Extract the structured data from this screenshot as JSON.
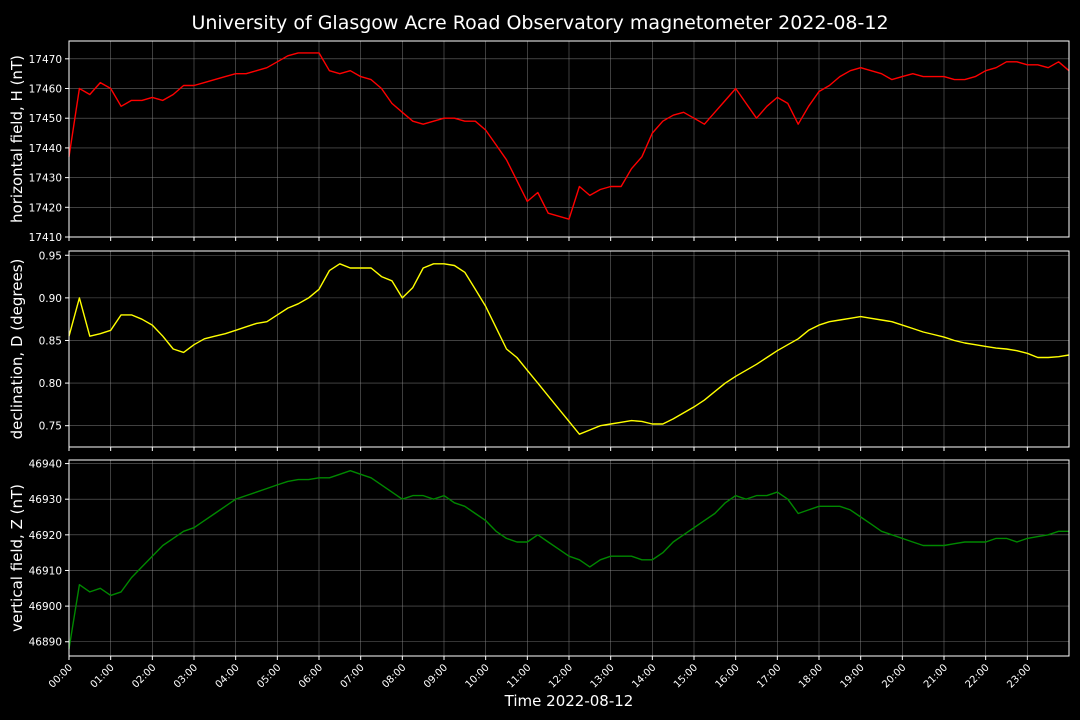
{
  "chart_data": {
    "type": "line",
    "title": "University of Glasgow Acre Road Observatory magnetometer 2022-08-12",
    "xlabel": "Time 2022-08-12",
    "x_tick_labels": [
      "00:00",
      "01:00",
      "02:00",
      "03:00",
      "04:00",
      "05:00",
      "06:00",
      "07:00",
      "08:00",
      "09:00",
      "10:00",
      "11:00",
      "12:00",
      "13:00",
      "14:00",
      "15:00",
      "16:00",
      "17:00",
      "18:00",
      "19:00",
      "20:00",
      "21:00",
      "22:00",
      "23:00"
    ],
    "xlim": [
      0,
      24
    ],
    "grid": true,
    "background": "#000000",
    "panels": [
      {
        "name": "horizontal-field",
        "ylabel": "horizontal field, H (nT)",
        "color": "#ff0000",
        "ylim": [
          17410,
          17476
        ],
        "yticks": [
          17410,
          17420,
          17430,
          17440,
          17450,
          17460,
          17470
        ],
        "tick_decimals": 0,
        "x": [
          0.0,
          0.25,
          0.5,
          0.75,
          1.0,
          1.25,
          1.5,
          1.75,
          2.0,
          2.25,
          2.5,
          2.75,
          3.0,
          3.25,
          3.5,
          3.75,
          4.0,
          4.25,
          4.5,
          4.75,
          5.0,
          5.25,
          5.5,
          5.75,
          6.0,
          6.25,
          6.5,
          6.75,
          7.0,
          7.25,
          7.5,
          7.75,
          8.0,
          8.25,
          8.5,
          8.75,
          9.0,
          9.25,
          9.5,
          9.75,
          10.0,
          10.25,
          10.5,
          10.75,
          11.0,
          11.25,
          11.5,
          11.75,
          12.0,
          12.25,
          12.5,
          12.75,
          13.0,
          13.25,
          13.5,
          13.75,
          14.0,
          14.25,
          14.5,
          14.75,
          15.0,
          15.25,
          15.5,
          15.75,
          16.0,
          16.25,
          16.5,
          16.75,
          17.0,
          17.25,
          17.5,
          17.75,
          18.0,
          18.25,
          18.5,
          18.75,
          19.0,
          19.25,
          19.5,
          19.75,
          20.0,
          20.25,
          20.5,
          20.75,
          21.0,
          21.25,
          21.5,
          21.75,
          22.0,
          22.25,
          22.5,
          22.75,
          23.0,
          23.25,
          23.5,
          23.75,
          24.0
        ],
        "y": [
          17437,
          17460,
          17458,
          17462,
          17460,
          17454,
          17456,
          17456,
          17457,
          17456,
          17458,
          17461,
          17461,
          17462,
          17463,
          17464,
          17465,
          17465,
          17466,
          17467,
          17469,
          17471,
          17472,
          17472,
          17472,
          17466,
          17465,
          17466,
          17464,
          17463,
          17460,
          17455,
          17452,
          17449,
          17448,
          17449,
          17450,
          17450,
          17449,
          17449,
          17446,
          17441,
          17436,
          17429,
          17422,
          17425,
          17418,
          17417,
          17416,
          17427,
          17424,
          17426,
          17427,
          17427,
          17433,
          17437,
          17445,
          17449,
          17451,
          17452,
          17450,
          17448,
          17452,
          17456,
          17460,
          17455,
          17450,
          17454,
          17457,
          17455,
          17448,
          17454,
          17459,
          17461,
          17464,
          17466,
          17467,
          17466,
          17465,
          17463,
          17464,
          17465,
          17464,
          17464,
          17464,
          17463,
          17463,
          17464,
          17466,
          17467,
          17469,
          17469,
          17468,
          17468,
          17467,
          17469,
          17466
        ]
      },
      {
        "name": "declination",
        "ylabel": "declination, D (degrees)",
        "color": "#ffff00",
        "ylim": [
          0.725,
          0.955
        ],
        "yticks": [
          0.75,
          0.8,
          0.85,
          0.9,
          0.95
        ],
        "tick_decimals": 2,
        "x": [
          0.0,
          0.25,
          0.5,
          0.75,
          1.0,
          1.25,
          1.5,
          1.75,
          2.0,
          2.25,
          2.5,
          2.75,
          3.0,
          3.25,
          3.5,
          3.75,
          4.0,
          4.25,
          4.5,
          4.75,
          5.0,
          5.25,
          5.5,
          5.75,
          6.0,
          6.25,
          6.5,
          6.75,
          7.0,
          7.25,
          7.5,
          7.75,
          8.0,
          8.25,
          8.5,
          8.75,
          9.0,
          9.25,
          9.5,
          9.75,
          10.0,
          10.25,
          10.5,
          10.75,
          11.0,
          11.25,
          11.5,
          11.75,
          12.0,
          12.25,
          12.5,
          12.75,
          13.0,
          13.25,
          13.5,
          13.75,
          14.0,
          14.25,
          14.5,
          14.75,
          15.0,
          15.25,
          15.5,
          15.75,
          16.0,
          16.25,
          16.5,
          16.75,
          17.0,
          17.25,
          17.5,
          17.75,
          18.0,
          18.25,
          18.5,
          18.75,
          19.0,
          19.25,
          19.5,
          19.75,
          20.0,
          20.25,
          20.5,
          20.75,
          21.0,
          21.25,
          21.5,
          21.75,
          22.0,
          22.25,
          22.5,
          22.75,
          23.0,
          23.25,
          23.5,
          23.75,
          24.0
        ],
        "y": [
          0.855,
          0.9,
          0.855,
          0.858,
          0.862,
          0.88,
          0.88,
          0.875,
          0.868,
          0.855,
          0.84,
          0.836,
          0.845,
          0.852,
          0.855,
          0.858,
          0.862,
          0.866,
          0.87,
          0.872,
          0.88,
          0.888,
          0.893,
          0.9,
          0.91,
          0.932,
          0.94,
          0.935,
          0.935,
          0.935,
          0.925,
          0.92,
          0.9,
          0.912,
          0.935,
          0.94,
          0.94,
          0.938,
          0.93,
          0.91,
          0.89,
          0.865,
          0.84,
          0.83,
          0.815,
          0.8,
          0.785,
          0.77,
          0.755,
          0.74,
          0.745,
          0.75,
          0.752,
          0.754,
          0.756,
          0.755,
          0.752,
          0.752,
          0.758,
          0.765,
          0.772,
          0.78,
          0.79,
          0.8,
          0.808,
          0.815,
          0.822,
          0.83,
          0.838,
          0.845,
          0.852,
          0.862,
          0.868,
          0.872,
          0.874,
          0.876,
          0.878,
          0.876,
          0.874,
          0.872,
          0.868,
          0.864,
          0.86,
          0.857,
          0.854,
          0.85,
          0.847,
          0.845,
          0.843,
          0.841,
          0.84,
          0.838,
          0.835,
          0.83,
          0.83,
          0.831,
          0.833
        ]
      },
      {
        "name": "vertical-field",
        "ylabel": "vertical field, Z (nT)",
        "color": "#008800",
        "ylim": [
          46886,
          46941
        ],
        "yticks": [
          46890,
          46900,
          46910,
          46920,
          46930,
          46940
        ],
        "tick_decimals": 0,
        "x": [
          0.0,
          0.25,
          0.5,
          0.75,
          1.0,
          1.25,
          1.5,
          1.75,
          2.0,
          2.25,
          2.5,
          2.75,
          3.0,
          3.25,
          3.5,
          3.75,
          4.0,
          4.25,
          4.5,
          4.75,
          5.0,
          5.25,
          5.5,
          5.75,
          6.0,
          6.25,
          6.5,
          6.75,
          7.0,
          7.25,
          7.5,
          7.75,
          8.0,
          8.25,
          8.5,
          8.75,
          9.0,
          9.25,
          9.5,
          9.75,
          10.0,
          10.25,
          10.5,
          10.75,
          11.0,
          11.25,
          11.5,
          11.75,
          12.0,
          12.25,
          12.5,
          12.75,
          13.0,
          13.25,
          13.5,
          13.75,
          14.0,
          14.25,
          14.5,
          14.75,
          15.0,
          15.25,
          15.5,
          15.75,
          16.0,
          16.25,
          16.5,
          16.75,
          17.0,
          17.25,
          17.5,
          17.75,
          18.0,
          18.25,
          18.5,
          18.75,
          19.0,
          19.25,
          19.5,
          19.75,
          20.0,
          20.25,
          20.5,
          20.75,
          21.0,
          21.25,
          21.5,
          21.75,
          22.0,
          22.25,
          22.5,
          22.75,
          23.0,
          23.25,
          23.5,
          23.75,
          24.0
        ],
        "y": [
          46888,
          46906,
          46904,
          46905,
          46903,
          46904,
          46908,
          46911,
          46914,
          46917,
          46919,
          46921,
          46922,
          46924,
          46926,
          46928,
          46930,
          46931,
          46932,
          46933,
          46934,
          46935,
          46935.5,
          46935.5,
          46936,
          46936,
          46937,
          46938,
          46937,
          46936,
          46934,
          46932,
          46930,
          46931,
          46931,
          46930,
          46931,
          46929,
          46928,
          46926,
          46924,
          46921,
          46919,
          46918,
          46918,
          46920,
          46918,
          46916,
          46914,
          46913,
          46911,
          46913,
          46914,
          46914,
          46914,
          46913,
          46913,
          46915,
          46918,
          46920,
          46922,
          46924,
          46926,
          46929,
          46931,
          46930,
          46931,
          46931,
          46932,
          46930,
          46926,
          46927,
          46928,
          46928,
          46928,
          46927,
          46925,
          46923,
          46921,
          46920,
          46919,
          46918,
          46917,
          46917,
          46917,
          46917.5,
          46918,
          46918,
          46918,
          46919,
          46919,
          46918,
          46919,
          46919.5,
          46920,
          46921,
          46921
        ]
      }
    ]
  }
}
